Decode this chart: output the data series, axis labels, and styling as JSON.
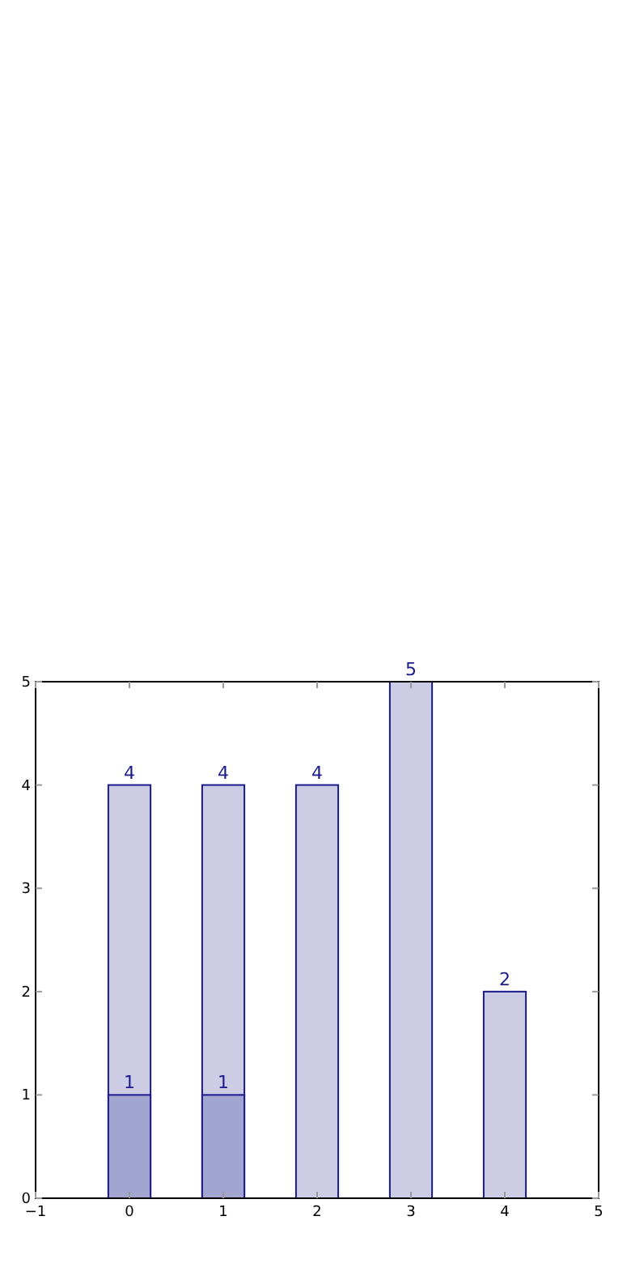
{
  "chart_data": {
    "type": "bar",
    "x": [
      0,
      1,
      2,
      3,
      4
    ],
    "series": [
      {
        "color": "#cccce4",
        "values": [
          4,
          4,
          4,
          5,
          2
        ]
      },
      {
        "color": "#a3a5d1",
        "x": [
          0,
          1
        ],
        "values": [
          1,
          1
        ]
      }
    ],
    "xlim": [
      -1,
      5
    ],
    "xticks": [
      {
        "value": -1,
        "label": "−1"
      },
      0,
      1,
      2,
      3,
      4,
      5
    ],
    "ylim": [
      0,
      5
    ],
    "yticks": [
      0,
      1,
      2,
      3,
      4,
      5
    ],
    "data_labels": true
  }
}
